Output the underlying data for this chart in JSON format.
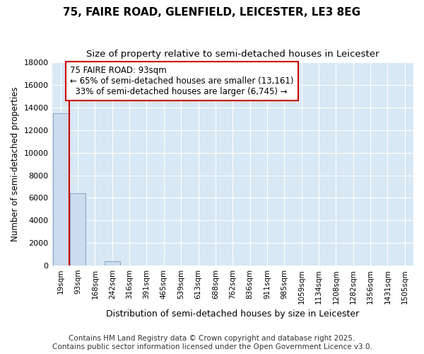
{
  "title": "75, FAIRE ROAD, GLENFIELD, LEICESTER, LE3 8EG",
  "subtitle": "Size of property relative to semi-detached houses in Leicester",
  "xlabel": "Distribution of semi-detached houses by size in Leicester",
  "ylabel": "Number of semi-detached properties",
  "bar_labels": [
    "19sqm",
    "93sqm",
    "168sqm",
    "242sqm",
    "316sqm",
    "391sqm",
    "465sqm",
    "539sqm",
    "613sqm",
    "688sqm",
    "762sqm",
    "836sqm",
    "911sqm",
    "985sqm",
    "1059sqm",
    "1134sqm",
    "1208sqm",
    "1282sqm",
    "1356sqm",
    "1431sqm",
    "1505sqm"
  ],
  "bar_values": [
    13500,
    6400,
    0,
    400,
    0,
    0,
    0,
    0,
    0,
    0,
    0,
    0,
    0,
    0,
    0,
    0,
    0,
    0,
    0,
    0,
    0
  ],
  "bar_color": "#ccdcee",
  "bar_edge_color": "#8aaac8",
  "property_line_x": 0.5,
  "property_line_color": "#cc0000",
  "annotation_text_line1": "75 FAIRE ROAD: 93sqm",
  "annotation_text_line2": "← 65% of semi-detached houses are smaller (13,161)",
  "annotation_text_line3": "  33% of semi-detached houses are larger (6,745) →",
  "annotation_box_color": "#cc0000",
  "ylim": [
    0,
    18000
  ],
  "yticks": [
    0,
    2000,
    4000,
    6000,
    8000,
    10000,
    12000,
    14000,
    16000,
    18000
  ],
  "figure_bg_color": "#ffffff",
  "plot_bg_color": "#d8e8f4",
  "grid_color": "#ffffff",
  "footer_line1": "Contains HM Land Registry data © Crown copyright and database right 2025.",
  "footer_line2": "Contains public sector information licensed under the Open Government Licence v3.0.",
  "title_fontsize": 11,
  "subtitle_fontsize": 9.5,
  "annotation_fontsize": 8.5,
  "footer_fontsize": 7.5,
  "ylabel_fontsize": 8.5,
  "xlabel_fontsize": 9
}
